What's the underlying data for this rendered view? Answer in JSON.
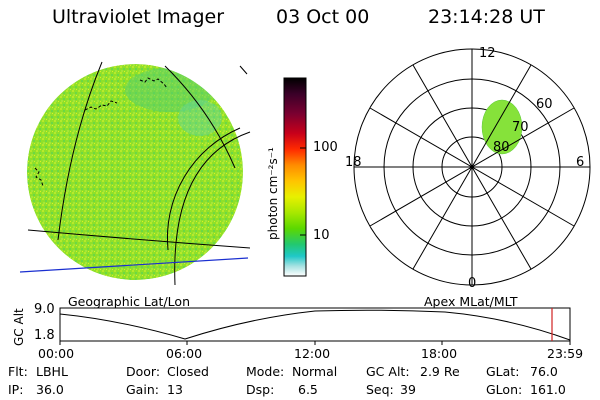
{
  "header": {
    "title": "Ultraviolet Imager",
    "date": "03 Oct 00",
    "time": "23:14:28 UT"
  },
  "colorbar": {
    "label": "photon cm⁻²s⁻¹",
    "ticks": [
      "100",
      "10"
    ],
    "colors": [
      "#000000",
      "#3a0028",
      "#7a0030",
      "#c8001a",
      "#ff2a00",
      "#ff8c00",
      "#ffc400",
      "#e8f000",
      "#a8e800",
      "#5cd800",
      "#22c870",
      "#20c8c8",
      "#a6e2e2",
      "#ffffff"
    ]
  },
  "earth_image": {
    "caption": "Geographic Lat/Lon",
    "fill_color": "#8fe02a",
    "coast_color": "#000000",
    "terminator_color": "#1a2fd0"
  },
  "polar_plot": {
    "caption": "Apex MLat/MLT",
    "mlt_labels": {
      "top": "12",
      "right": "6",
      "bottom": "0",
      "left": "18"
    },
    "lat_labels": [
      "60",
      "70",
      "80"
    ],
    "oval_color": "#86e23a"
  },
  "altitude_plot": {
    "ylabel": "GC Alt",
    "yticks": [
      "9.0",
      "1.8"
    ],
    "xticks": [
      "00:00",
      "06:00",
      "12:00",
      "18:00",
      "23:59"
    ],
    "marker_color": "#d02020"
  },
  "info": {
    "row1": [
      {
        "key": "Flt:",
        "value": "LBHL"
      },
      {
        "key": "Door:",
        "value": "Closed"
      },
      {
        "key": "Mode:",
        "value": "Normal"
      },
      {
        "key": "GC Alt:",
        "value": "2.9 Re"
      },
      {
        "key": "GLat:",
        "value": "76.0"
      }
    ],
    "row2": [
      {
        "key": "IP:",
        "value": "36.0"
      },
      {
        "key": "Gain:",
        "value": "13"
      },
      {
        "key": "Dsp:",
        "value": "6.5"
      },
      {
        "key": "Seq:",
        "value": "39"
      },
      {
        "key": "GLon:",
        "value": "161.0"
      }
    ]
  }
}
